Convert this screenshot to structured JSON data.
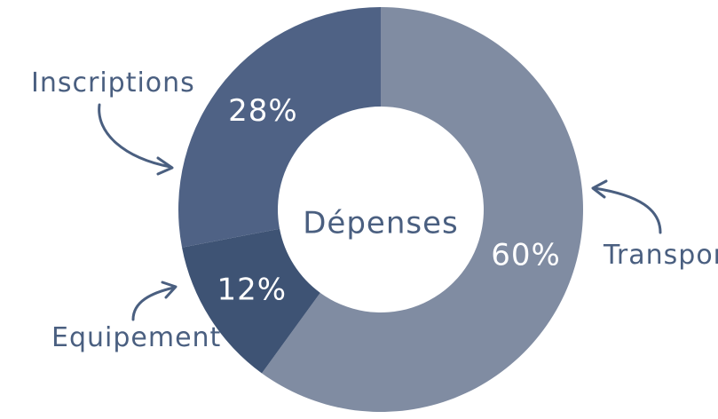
{
  "chart_data": {
    "type": "pie",
    "donut": true,
    "center_label": "Dépenses",
    "slices": [
      {
        "label": "Transport",
        "value": 60,
        "value_label": "60%",
        "color": "#808ca2"
      },
      {
        "label": "Equipement",
        "value": 12,
        "value_label": "12%",
        "color": "#3e5374"
      },
      {
        "label": "Inscriptions",
        "value": 28,
        "value_label": "28%",
        "color": "#4f6285"
      }
    ],
    "start_angle": "top",
    "direction": "clockwise",
    "legend": "callouts with arrows",
    "label_color": "#4a5f80"
  }
}
